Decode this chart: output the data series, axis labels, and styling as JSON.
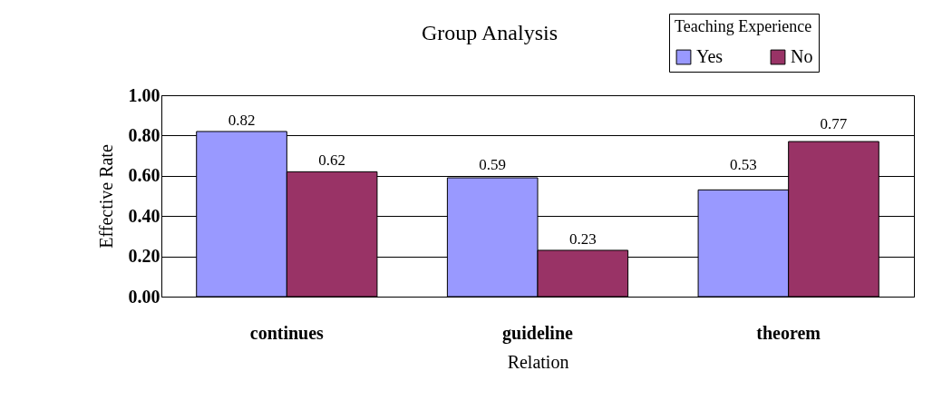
{
  "chart_data": {
    "type": "bar",
    "title": "Group Analysis",
    "xlabel": "Relation",
    "ylabel": "Effective Rate",
    "legend_title": "Teaching Experience",
    "categories": [
      "continues",
      "guideline",
      "theorem"
    ],
    "series": [
      {
        "name": "Yes",
        "color": "#9999ff",
        "values": [
          0.82,
          0.59,
          0.53
        ]
      },
      {
        "name": "No",
        "color": "#993366",
        "values": [
          0.62,
          0.23,
          0.77
        ]
      }
    ],
    "ylim": [
      0,
      1
    ],
    "yticks": [
      {
        "value": 0,
        "label": "0.00"
      },
      {
        "value": 0.2,
        "label": "0.20"
      },
      {
        "value": 0.4,
        "label": "0.40"
      },
      {
        "value": 0.6,
        "label": "0.60"
      },
      {
        "value": 0.8,
        "label": "0.80"
      },
      {
        "value": 1,
        "label": "1.00"
      }
    ],
    "grid": "y",
    "legend": "top right",
    "data_labels": true
  }
}
